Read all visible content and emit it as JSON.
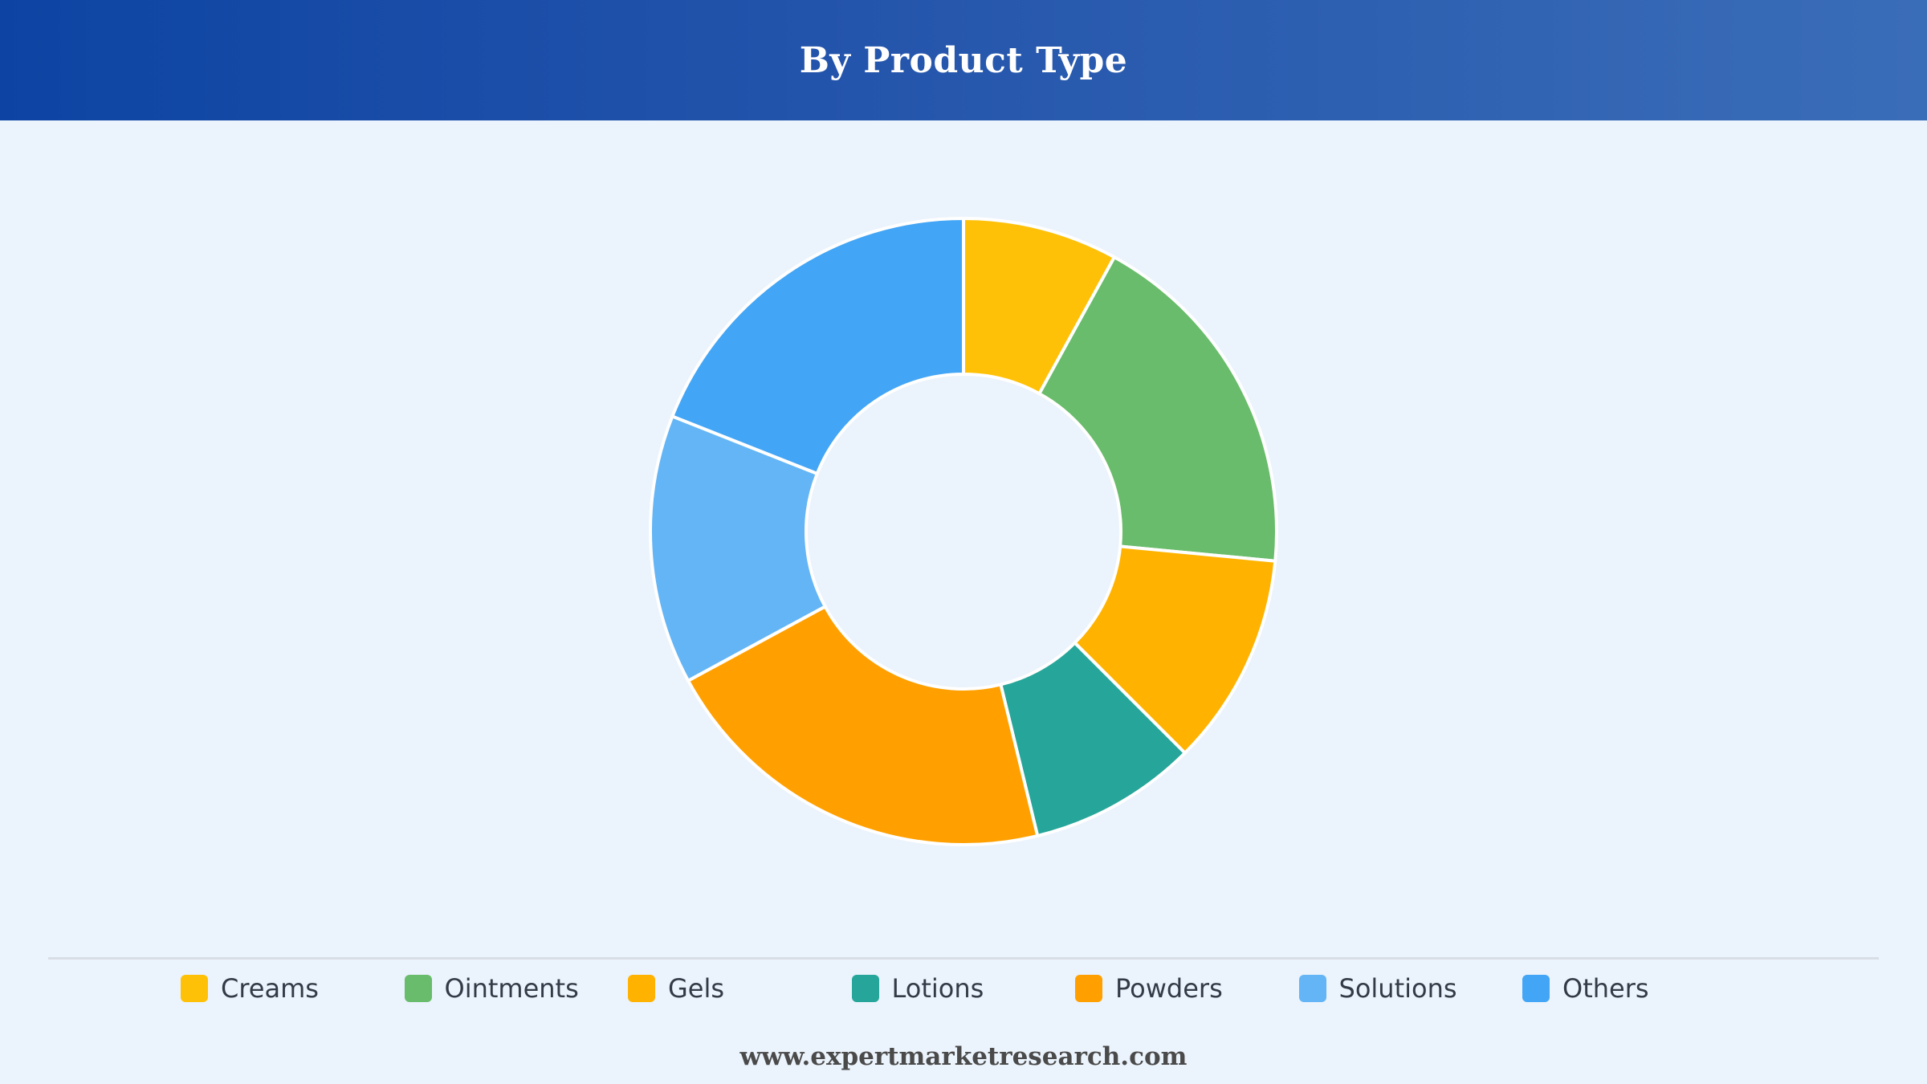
{
  "header": {
    "title": "By Product Type"
  },
  "chart_data": {
    "type": "pie",
    "title": "By Product Type",
    "donut": true,
    "legend_position": "bottom",
    "categories": [
      "Creams",
      "Ointments",
      "Gels",
      "Lotions",
      "Powders",
      "Solutions",
      "Others"
    ],
    "values": [
      8.0,
      18.5,
      11.0,
      8.7,
      20.9,
      13.9,
      19.0
    ],
    "colors": [
      "#ffc107",
      "#69bc6b",
      "#ffb300",
      "#26a69a",
      "#ffa000",
      "#64b5f6",
      "#42a5f5"
    ]
  },
  "footer": {
    "source": "www.expertmarketresearch.com"
  }
}
